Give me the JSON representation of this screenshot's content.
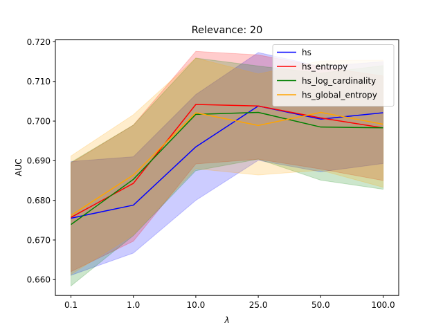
{
  "chart_data": {
    "type": "line",
    "title": "Relevance: 20",
    "xlabel": "λ",
    "ylabel": "AUC",
    "categories": [
      "0.1",
      "1.0",
      "10.0",
      "25.0",
      "50.0",
      "100.0"
    ],
    "ylim": [
      0.656,
      0.7205
    ],
    "yticks": [
      0.66,
      0.67,
      0.68,
      0.69,
      0.7,
      0.71,
      0.72
    ],
    "ytick_labels": [
      "0.660",
      "0.670",
      "0.680",
      "0.690",
      "0.700",
      "0.710",
      "0.720"
    ],
    "grid": false,
    "legend_position": "top-right",
    "series": [
      {
        "name": "hs",
        "color": "#0000ff",
        "values": [
          0.6755,
          0.6788,
          0.6935,
          0.7038,
          0.7005,
          0.7021
        ],
        "lower": [
          0.6611,
          0.6667,
          0.68,
          0.6901,
          0.6872,
          0.6893
        ],
        "upper": [
          0.6898,
          0.691,
          0.7067,
          0.7173,
          0.7138,
          0.715
        ]
      },
      {
        "name": "hs_entropy",
        "color": "#ff0000",
        "values": [
          0.6757,
          0.6843,
          0.7042,
          0.7038,
          0.7008,
          0.6983
        ],
        "lower": [
          0.662,
          0.6697,
          0.6892,
          0.6904,
          0.6879,
          0.685
        ],
        "upper": [
          0.6894,
          0.699,
          0.7176,
          0.7167,
          0.7137,
          0.7114
        ]
      },
      {
        "name": "hs_log_cardinality",
        "color": "#008000",
        "values": [
          0.6739,
          0.6853,
          0.7017,
          0.7022,
          0.6985,
          0.6983
        ],
        "lower": [
          0.6584,
          0.6711,
          0.6875,
          0.6904,
          0.6851,
          0.6828
        ],
        "upper": [
          0.6896,
          0.699,
          0.7159,
          0.7139,
          0.7121,
          0.714
        ]
      },
      {
        "name": "hs_global_entropy",
        "color": "#ffa500",
        "values": [
          0.6762,
          0.6864,
          0.7021,
          0.6989,
          0.7022,
          0.6992
        ],
        "lower": [
          0.6613,
          0.6713,
          0.688,
          0.6864,
          0.6876,
          0.6833
        ],
        "upper": [
          0.6912,
          0.7016,
          0.7159,
          0.7119,
          0.7152,
          0.7154
        ]
      }
    ]
  }
}
